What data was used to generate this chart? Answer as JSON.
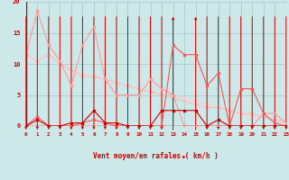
{
  "x": [
    0,
    1,
    2,
    3,
    4,
    5,
    6,
    7,
    8,
    9,
    10,
    11,
    12,
    13,
    14,
    15,
    16,
    17,
    18,
    19,
    20,
    21,
    22,
    23
  ],
  "line1_y": [
    11.5,
    18.5,
    13,
    10.5,
    6.5,
    13,
    16,
    7.5,
    5,
    5,
    5,
    7.5,
    6,
    5,
    0,
    0,
    0,
    0,
    0,
    0,
    0,
    2,
    2,
    0.5
  ],
  "line2_y": [
    0,
    1.0,
    0,
    0,
    0.5,
    0.5,
    2.5,
    0.5,
    0.5,
    0,
    0,
    0,
    2.5,
    2.5,
    2.5,
    2.5,
    0,
    1.0,
    0,
    0,
    0,
    0,
    0,
    0
  ],
  "line3_y": [
    11.5,
    10.5,
    11.5,
    10,
    9,
    8,
    8,
    7.5,
    7,
    6.5,
    6,
    5.5,
    5,
    4.5,
    4,
    3.5,
    3,
    3,
    2.5,
    2,
    2,
    1.5,
    1,
    0.5
  ],
  "line4_y": [
    11.5,
    10.5,
    11.5,
    10,
    9,
    8.5,
    8,
    7.5,
    7,
    6.5,
    6,
    5.5,
    5,
    5,
    4.5,
    4,
    3.5,
    3,
    2.5,
    2,
    1.5,
    1.5,
    1,
    0.5
  ],
  "line5_y": [
    0,
    1.5,
    0,
    0,
    0,
    0.5,
    1,
    0.5,
    0,
    0,
    0,
    0,
    0,
    13,
    11.5,
    11.5,
    6.5,
    8.5,
    0,
    6,
    6,
    2,
    0.5,
    0
  ],
  "arrows_dir": [
    "d",
    "d",
    "d",
    "d",
    "d",
    "d",
    "d",
    "d",
    "d",
    "d",
    "d",
    "d",
    "d",
    "u",
    "r",
    "u",
    "d",
    "d",
    "d",
    "d",
    "d",
    "d",
    "d",
    "d"
  ],
  "xlabel": "Vent moyen/en rafales ( km/h )",
  "ylim": [
    0,
    20
  ],
  "xlim": [
    0,
    23
  ],
  "bg_color": "#cce8e8",
  "grid_color": "#aacccc",
  "line1_color": "#ff9999",
  "line2_color": "#cc0000",
  "line3_color": "#ffbbbb",
  "line4_color": "#ffcccc",
  "line5_color": "#ff5555",
  "arrow_color": "#cc0000",
  "axis_line_color": "#cc0000",
  "tick_color": "#cc0000",
  "label_color": "#cc0000"
}
